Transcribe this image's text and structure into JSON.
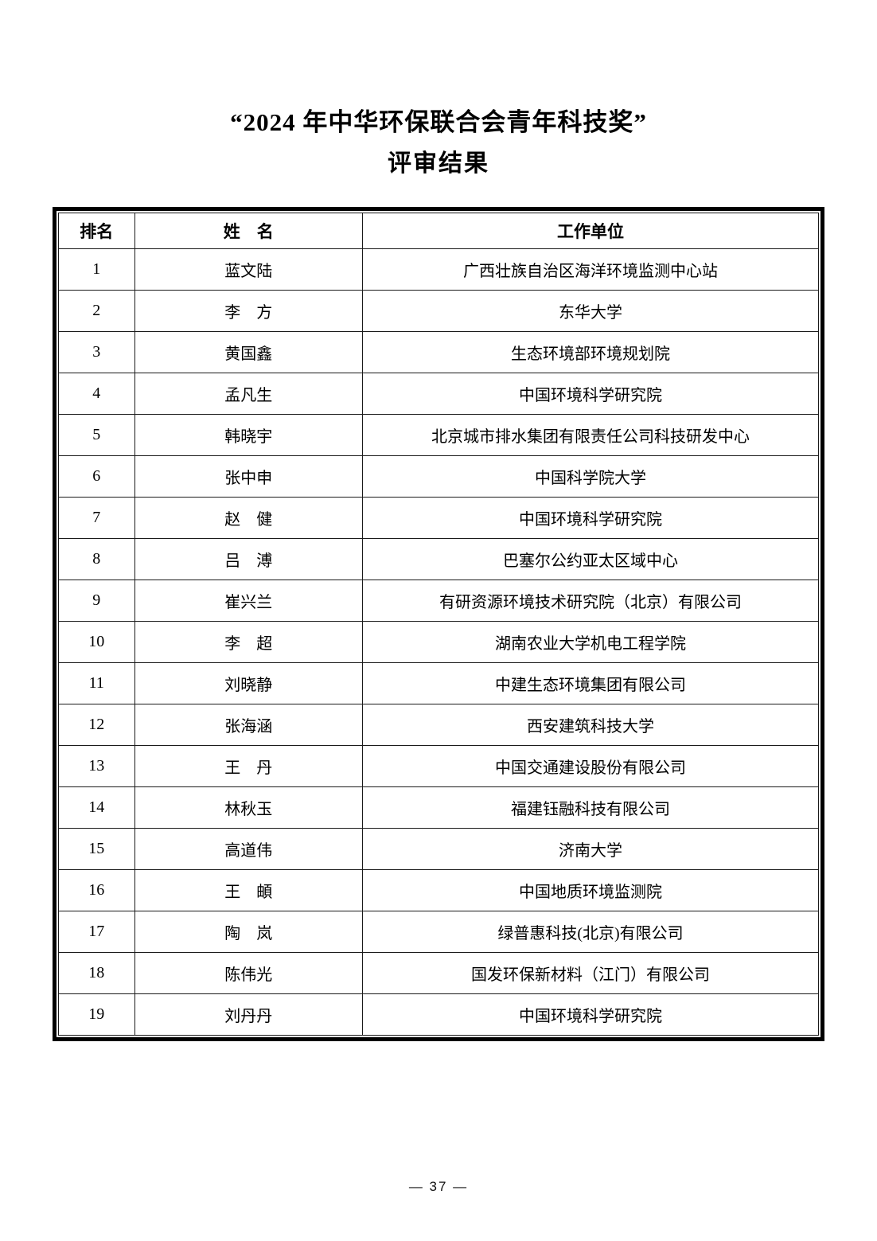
{
  "page": {
    "title_line1": "“2024 年中华环保联合会青年科技奖”",
    "title_line2": "评审结果",
    "footer": "— 37 —"
  },
  "table": {
    "headers": [
      "排名",
      "姓　名",
      "工作单位"
    ],
    "rows": [
      {
        "rank": "1",
        "name": "蓝文陆",
        "unit": "广西壮族自治区海洋环境监测中心站"
      },
      {
        "rank": "2",
        "name": "李　方",
        "unit": "东华大学"
      },
      {
        "rank": "3",
        "name": "黄国鑫",
        "unit": "生态环境部环境规划院"
      },
      {
        "rank": "4",
        "name": "孟凡生",
        "unit": "中国环境科学研究院"
      },
      {
        "rank": "5",
        "name": "韩晓宇",
        "unit": "北京城市排水集团有限责任公司科技研发中心"
      },
      {
        "rank": "6",
        "name": "张中申",
        "unit": "中国科学院大学"
      },
      {
        "rank": "7",
        "name": "赵　健",
        "unit": "中国环境科学研究院"
      },
      {
        "rank": "8",
        "name": "吕　溥",
        "unit": "巴塞尔公约亚太区域中心"
      },
      {
        "rank": "9",
        "name": "崔兴兰",
        "unit": "有研资源环境技术研究院（北京）有限公司"
      },
      {
        "rank": "10",
        "name": "李　超",
        "unit": "湖南农业大学机电工程学院"
      },
      {
        "rank": "11",
        "name": "刘晓静",
        "unit": "中建生态环境集团有限公司"
      },
      {
        "rank": "12",
        "name": "张海涵",
        "unit": "西安建筑科技大学"
      },
      {
        "rank": "13",
        "name": "王　丹",
        "unit": "中国交通建设股份有限公司"
      },
      {
        "rank": "14",
        "name": "林秋玉",
        "unit": "福建钰融科技有限公司"
      },
      {
        "rank": "15",
        "name": "高道伟",
        "unit": "济南大学"
      },
      {
        "rank": "16",
        "name": "王　頔",
        "unit": "中国地质环境监测院"
      },
      {
        "rank": "17",
        "name": "陶　岚",
        "unit": "绿普惠科技(北京)有限公司"
      },
      {
        "rank": "18",
        "name": "陈伟光",
        "unit": "国发环保新材料（江门）有限公司"
      },
      {
        "rank": "19",
        "name": "刘丹丹",
        "unit": "中国环境科学研究院"
      }
    ]
  }
}
